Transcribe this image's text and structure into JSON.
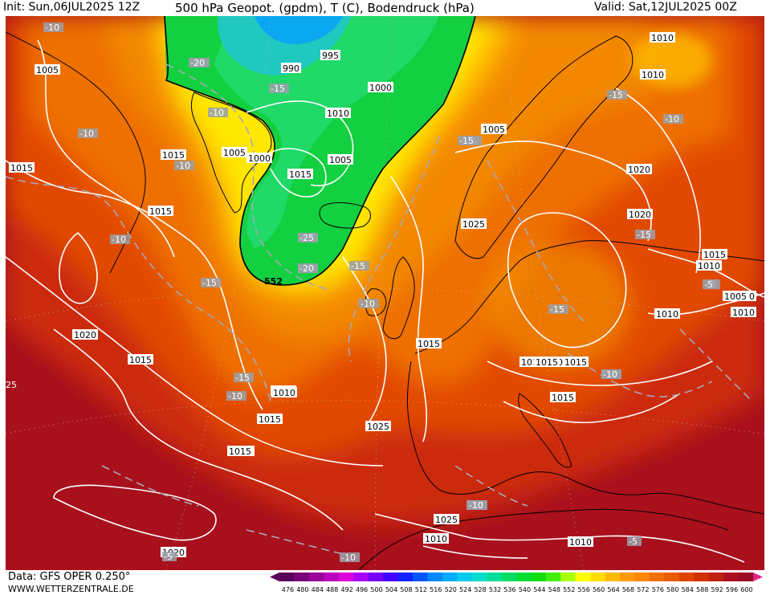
{
  "header": {
    "init": "Init: Sun,06JUL2025 12Z",
    "title": "500 hPa Geopot. (gpdm), T (C), Bodendruck (hPa)",
    "valid": "Valid: Sat,12JUL2025 00Z"
  },
  "footer": {
    "data_source": "Data: GFS OPER 0.250°",
    "site": "WWW.WETTERZENTRALE.DE"
  },
  "geopotential_contour_label": "552",
  "pressure_labels": [
    "1005",
    "1010",
    "995",
    "990",
    "1000",
    "1010",
    "1005",
    "1015",
    "1005",
    "1000",
    "1005",
    "1010",
    "1015",
    "1015",
    "1020",
    "1025",
    "1020",
    "1015",
    "1015",
    "1020",
    "1010",
    "1015",
    "1015",
    "1015",
    "1020",
    "1010",
    "1020",
    "1015",
    "1010",
    "1010",
    "1005",
    "1015",
    "1020",
    "1025",
    "1025",
    "1015",
    "1010",
    "1010",
    "1010",
    "1015",
    "1015",
    "1015",
    "1005",
    "1010"
  ],
  "temperature_labels": [
    "-10",
    "-20",
    "-25",
    "-15",
    "-10",
    "-20",
    "-10",
    "-10",
    "-10",
    "-15",
    "-20",
    "-15",
    "-25",
    "-20",
    "-15",
    "-10",
    "-15",
    "-15",
    "-15",
    "-10",
    "-15",
    "-10",
    "-10",
    "-15",
    "-10",
    "-10",
    "-5",
    "-10",
    "-5",
    "-5",
    "-10",
    "-5"
  ],
  "edge_label": "25",
  "legend": {
    "ticks": [
      "476",
      "480",
      "484",
      "488",
      "492",
      "496",
      "500",
      "504",
      "508",
      "512",
      "516",
      "520",
      "524",
      "528",
      "532",
      "536",
      "540",
      "544",
      "548",
      "552",
      "556",
      "560",
      "564",
      "568",
      "572",
      "576",
      "580",
      "584",
      "588",
      "592",
      "596",
      "600"
    ],
    "colors": [
      "#5a005a",
      "#7a007a",
      "#9a009a",
      "#bb00bb",
      "#dd00dd",
      "#aa00ff",
      "#7700ff",
      "#4400ff",
      "#1122ff",
      "#0055ff",
      "#0088ff",
      "#00aaff",
      "#00ccee",
      "#00ddcc",
      "#00dd99",
      "#00dd66",
      "#00dd33",
      "#11dd11",
      "#44ee00",
      "#aaff00",
      "#ffff00",
      "#ffdd00",
      "#ffbb00",
      "#ff9900",
      "#ff8800",
      "#f27000",
      "#e65c00",
      "#dd4400",
      "#d03000",
      "#c02010",
      "#aa1020",
      "#990a25"
    ]
  }
}
